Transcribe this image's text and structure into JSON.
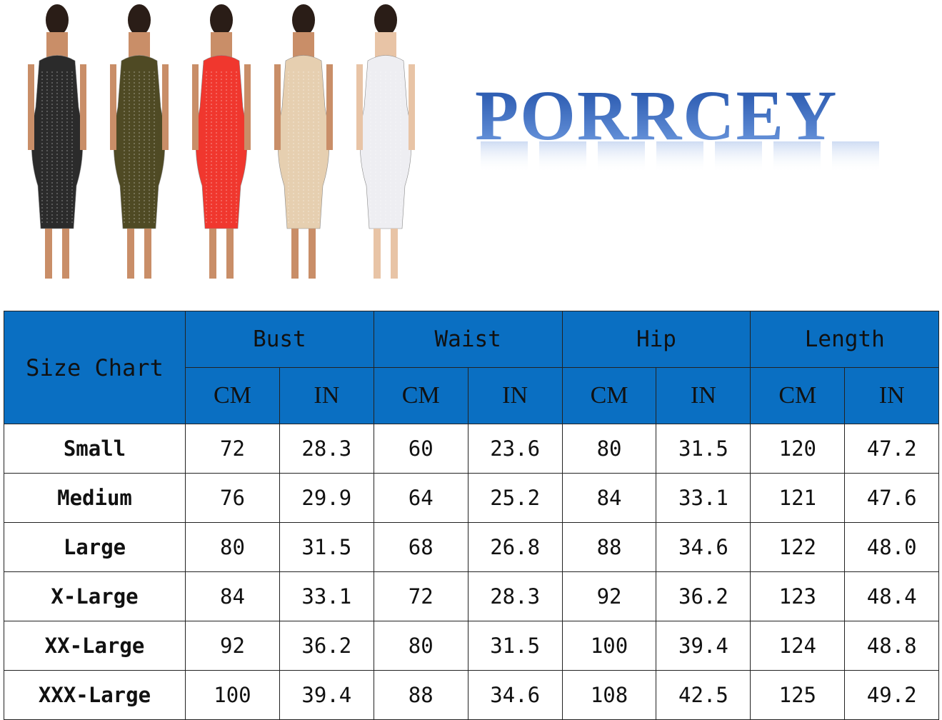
{
  "brand": {
    "logo_text": "PORRCEY",
    "color": "#2a5cb8"
  },
  "product_photo": {
    "dress_colors": [
      "#2b2b2b",
      "#4f4a24",
      "#f0372e",
      "#e6cfb0",
      "#eeeef2"
    ]
  },
  "size_chart": {
    "title": "Size Chart",
    "header_color": "#0a6fc2",
    "measurements": [
      "Bust",
      "Waist",
      "Hip",
      "Length"
    ],
    "units": [
      "CM",
      "IN"
    ],
    "rows": [
      {
        "size": "Small",
        "values": [
          "72",
          "28.3",
          "60",
          "23.6",
          "80",
          "31.5",
          "120",
          "47.2"
        ]
      },
      {
        "size": "Medium",
        "values": [
          "76",
          "29.9",
          "64",
          "25.2",
          "84",
          "33.1",
          "121",
          "47.6"
        ]
      },
      {
        "size": "Large",
        "values": [
          "80",
          "31.5",
          "68",
          "26.8",
          "88",
          "34.6",
          "122",
          "48.0"
        ]
      },
      {
        "size": "X-Large",
        "values": [
          "84",
          "33.1",
          "72",
          "28.3",
          "92",
          "36.2",
          "123",
          "48.4"
        ]
      },
      {
        "size": "XX-Large",
        "values": [
          "92",
          "36.2",
          "80",
          "31.5",
          "100",
          "39.4",
          "124",
          "48.8"
        ]
      },
      {
        "size": "XXX-Large",
        "values": [
          "100",
          "39.4",
          "88",
          "34.6",
          "108",
          "42.5",
          "125",
          "49.2"
        ]
      }
    ]
  }
}
